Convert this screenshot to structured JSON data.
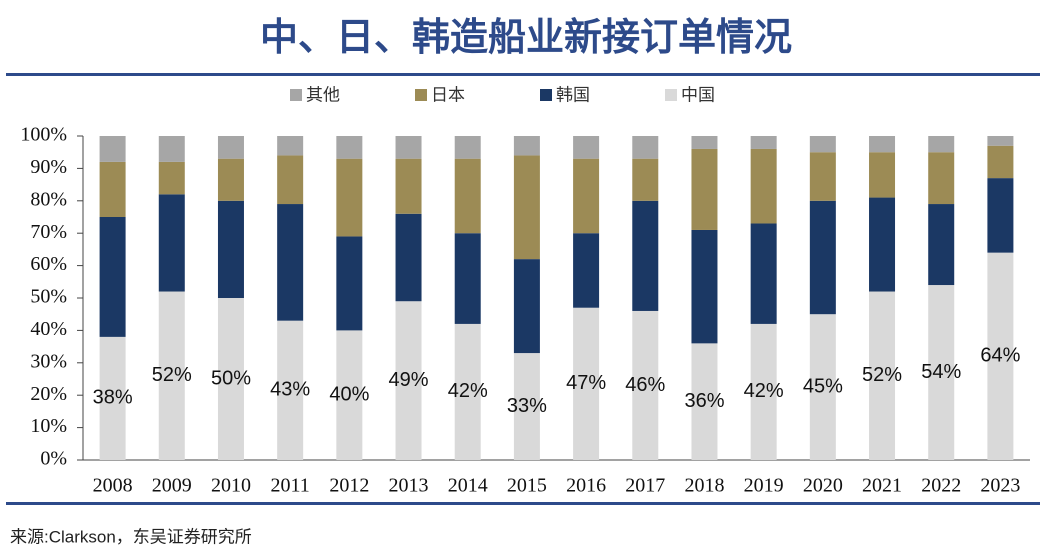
{
  "chart_data": {
    "type": "stacked_bar",
    "title": "中、日、韩造船业新接订单情况",
    "source": "来源:Clarkson，东吴证券研究所",
    "categories": [
      "2008",
      "2009",
      "2010",
      "2011",
      "2012",
      "2013",
      "2014",
      "2015",
      "2016",
      "2017",
      "2018",
      "2019",
      "2020",
      "2021",
      "2022",
      "2023"
    ],
    "series": [
      {
        "name": "其他",
        "color": "#a6a6a6",
        "values": [
          8,
          8,
          7,
          6,
          7,
          7,
          7,
          6,
          7,
          7,
          4,
          4,
          5,
          5,
          5,
          3
        ]
      },
      {
        "name": "日本",
        "color": "#9c8b55",
        "values": [
          17,
          10,
          13,
          15,
          24,
          17,
          23,
          32,
          23,
          13,
          25,
          23,
          15,
          14,
          16,
          10
        ]
      },
      {
        "name": "韩国",
        "color": "#1b3864",
        "values": [
          37,
          30,
          30,
          36,
          29,
          27,
          28,
          29,
          23,
          34,
          35,
          31,
          35,
          29,
          25,
          23
        ]
      },
      {
        "name": "中国",
        "color": "#d9d9d9",
        "values": [
          38,
          52,
          50,
          43,
          40,
          49,
          42,
          33,
          47,
          46,
          36,
          42,
          45,
          52,
          54,
          64
        ],
        "value_labels": [
          "38%",
          "52%",
          "50%",
          "43%",
          "40%",
          "49%",
          "42%",
          "33%",
          "47%",
          "46%",
          "36%",
          "42%",
          "45%",
          "52%",
          "54%",
          "64%"
        ]
      }
    ],
    "ylim": [
      0,
      100
    ],
    "yticks": [
      {
        "value": 0,
        "label": "0%"
      },
      {
        "value": 10,
        "label": "10%"
      },
      {
        "value": 20,
        "label": "20%"
      },
      {
        "value": 30,
        "label": "30%"
      },
      {
        "value": 40,
        "label": "40%"
      },
      {
        "value": 50,
        "label": "50%"
      },
      {
        "value": 60,
        "label": "60%"
      },
      {
        "value": 70,
        "label": "70%"
      },
      {
        "value": 80,
        "label": "80%"
      },
      {
        "value": 90,
        "label": "90%"
      },
      {
        "value": 100,
        "label": "100%"
      }
    ],
    "legend": "top"
  }
}
